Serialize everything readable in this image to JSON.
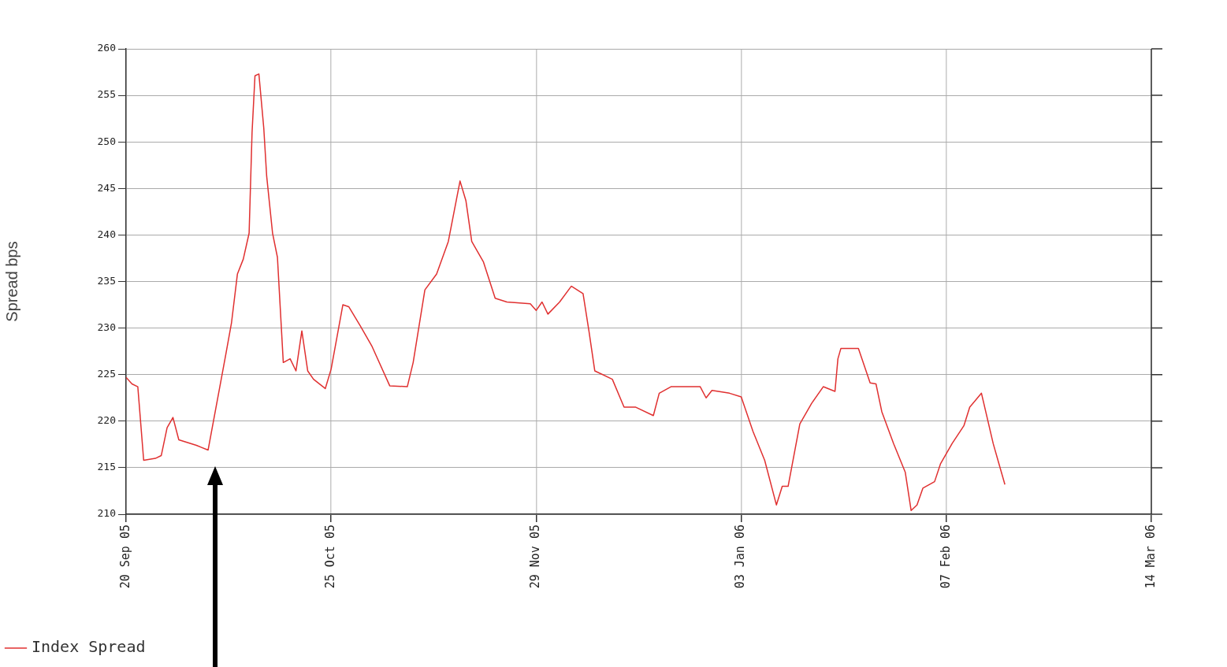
{
  "chart_data": {
    "type": "line",
    "ylabel": "Spread bps",
    "xlim": [
      "2005-09-20",
      "2006-03-14"
    ],
    "xticks": [
      {
        "value": "2005-09-20",
        "label": "20 Sep 05"
      },
      {
        "value": "2005-10-25",
        "label": "25 Oct 05"
      },
      {
        "value": "2005-11-29",
        "label": "29 Nov 05"
      },
      {
        "value": "2006-01-03",
        "label": "03 Jan 06"
      },
      {
        "value": "2006-02-07",
        "label": "07 Feb 06"
      },
      {
        "value": "2006-03-14",
        "label": "14 Mar 06"
      }
    ],
    "ylim": [
      210,
      260
    ],
    "yticks": [
      210,
      215,
      220,
      225,
      230,
      235,
      240,
      245,
      250,
      255,
      260
    ],
    "grid": true,
    "legend": "bottom left",
    "marker": "none",
    "line_style": "solid",
    "x": [
      "2005-09-20",
      "2005-09-21",
      "2005-09-22",
      "2005-09-23",
      "2005-09-25",
      "2005-09-26",
      "2005-09-27",
      "2005-09-28",
      "2005-09-29",
      "2005-10-02",
      "2005-10-04",
      "2005-10-06",
      "2005-10-07",
      "2005-10-08",
      "2005-10-09",
      "2005-10-10",
      "2005-10-11",
      "2005-10-11T12:00",
      "2005-10-12",
      "2005-10-12T16:00",
      "2005-10-13T12:00",
      "2005-10-14",
      "2005-10-15",
      "2005-10-15T20:00",
      "2005-10-16T20:00",
      "2005-10-18",
      "2005-10-19",
      "2005-10-20",
      "2005-10-21",
      "2005-10-22",
      "2005-10-24",
      "2005-10-25",
      "2005-10-27",
      "2005-10-28",
      "2005-10-30",
      "2005-11-01",
      "2005-11-04",
      "2005-11-07",
      "2005-11-08",
      "2005-11-10",
      "2005-11-12",
      "2005-11-14",
      "2005-11-16",
      "2005-11-17",
      "2005-11-18",
      "2005-11-20",
      "2005-11-22",
      "2005-11-24",
      "2005-11-28",
      "2005-11-29",
      "2005-11-30",
      "2005-12-01",
      "2005-12-03",
      "2005-12-05",
      "2005-12-07",
      "2005-12-08",
      "2005-12-09",
      "2005-12-12",
      "2005-12-14",
      "2005-12-16",
      "2005-12-19",
      "2005-12-20",
      "2005-12-22",
      "2005-12-25",
      "2005-12-27",
      "2005-12-28",
      "2005-12-29",
      "2006-01-01",
      "2006-01-03",
      "2006-01-05",
      "2006-01-07",
      "2006-01-09",
      "2006-01-10",
      "2006-01-11",
      "2006-01-13",
      "2006-01-15",
      "2006-01-17",
      "2006-01-19",
      "2006-01-19T12:00",
      "2006-01-20",
      "2006-01-23",
      "2006-01-25",
      "2006-01-26",
      "2006-01-27",
      "2006-01-29",
      "2006-01-31",
      "2006-02-01",
      "2006-02-02",
      "2006-02-03",
      "2006-02-05",
      "2006-02-06",
      "2006-02-08",
      "2006-02-10",
      "2006-02-11",
      "2006-02-13",
      "2006-02-15",
      "2006-02-16",
      "2006-02-17"
    ],
    "series": [
      {
        "name": "Index Spread",
        "color": "#e03030",
        "values": [
          224.7,
          224,
          223.7,
          215.8,
          216,
          216.3,
          219.3,
          220.4,
          218,
          217.4,
          216.9,
          223.7,
          227.1,
          230.6,
          235.8,
          237.4,
          240.2,
          251,
          257.1,
          257.3,
          251.5,
          246.3,
          240.2,
          237.6,
          226.3,
          226.7,
          225.4,
          229.7,
          225.4,
          224.5,
          223.5,
          225.6,
          232.5,
          232.3,
          230.2,
          228,
          223.8,
          223.7,
          226.3,
          234.1,
          235.8,
          239.3,
          245.8,
          243.7,
          239.3,
          237.1,
          233.2,
          232.8,
          232.6,
          231.9,
          232.8,
          231.5,
          232.8,
          234.5,
          233.7,
          229.7,
          225.4,
          224.5,
          221.5,
          221.5,
          220.6,
          223,
          223.7,
          223.7,
          223.7,
          222.5,
          223.3,
          223,
          222.6,
          218.9,
          215.8,
          211,
          213,
          213,
          219.7,
          221.9,
          223.7,
          223.2,
          226.7,
          227.8,
          227.8,
          224.1,
          224,
          221,
          217.6,
          214.5,
          210.4,
          211,
          212.8,
          213.5,
          215.4,
          217.6,
          219.5,
          221.5,
          223,
          217.6,
          215.4,
          213.2
        ]
      }
    ]
  }
}
